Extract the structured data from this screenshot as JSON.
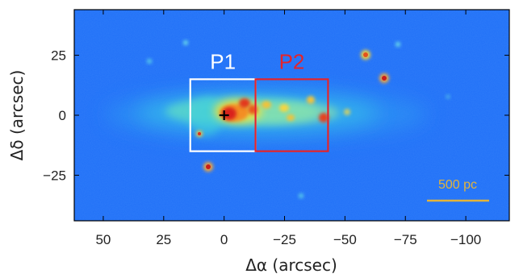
{
  "image": {
    "colors": {
      "background_low": "#1552f2",
      "background_mid": "#1f6ff7",
      "frame": "#000000",
      "box_p1": "#ffffff",
      "box_p2": "#e5242a",
      "scale_bar": "#e3b43a",
      "cross": "#000000"
    },
    "x_axis": {
      "title": "Δα (arcsec)",
      "range": [
        62,
        -118
      ],
      "ticks": [
        50,
        25,
        0,
        -25,
        -50,
        -75,
        -100
      ],
      "tick_labels": [
        "50",
        "25",
        "0",
        "−25",
        "−50",
        "−75",
        "−100"
      ]
    },
    "y_axis": {
      "title": "Δδ (arcsec)",
      "range": [
        -44,
        44
      ],
      "ticks": [
        25,
        0,
        -25
      ],
      "tick_labels": [
        "25",
        "0",
        "−25"
      ]
    },
    "boxes": [
      {
        "label": "P1",
        "color_key": "box_p1",
        "x_range": [
          14,
          -13
        ],
        "y_range": [
          -15,
          15
        ]
      },
      {
        "label": "P2",
        "color_key": "box_p2",
        "x_range": [
          -13,
          -43
        ],
        "y_range": [
          -15,
          15
        ]
      }
    ],
    "scale_bar": {
      "label": "500 pc"
    },
    "marker": {
      "kind": "cross",
      "x": 0,
      "y": 0
    }
  }
}
